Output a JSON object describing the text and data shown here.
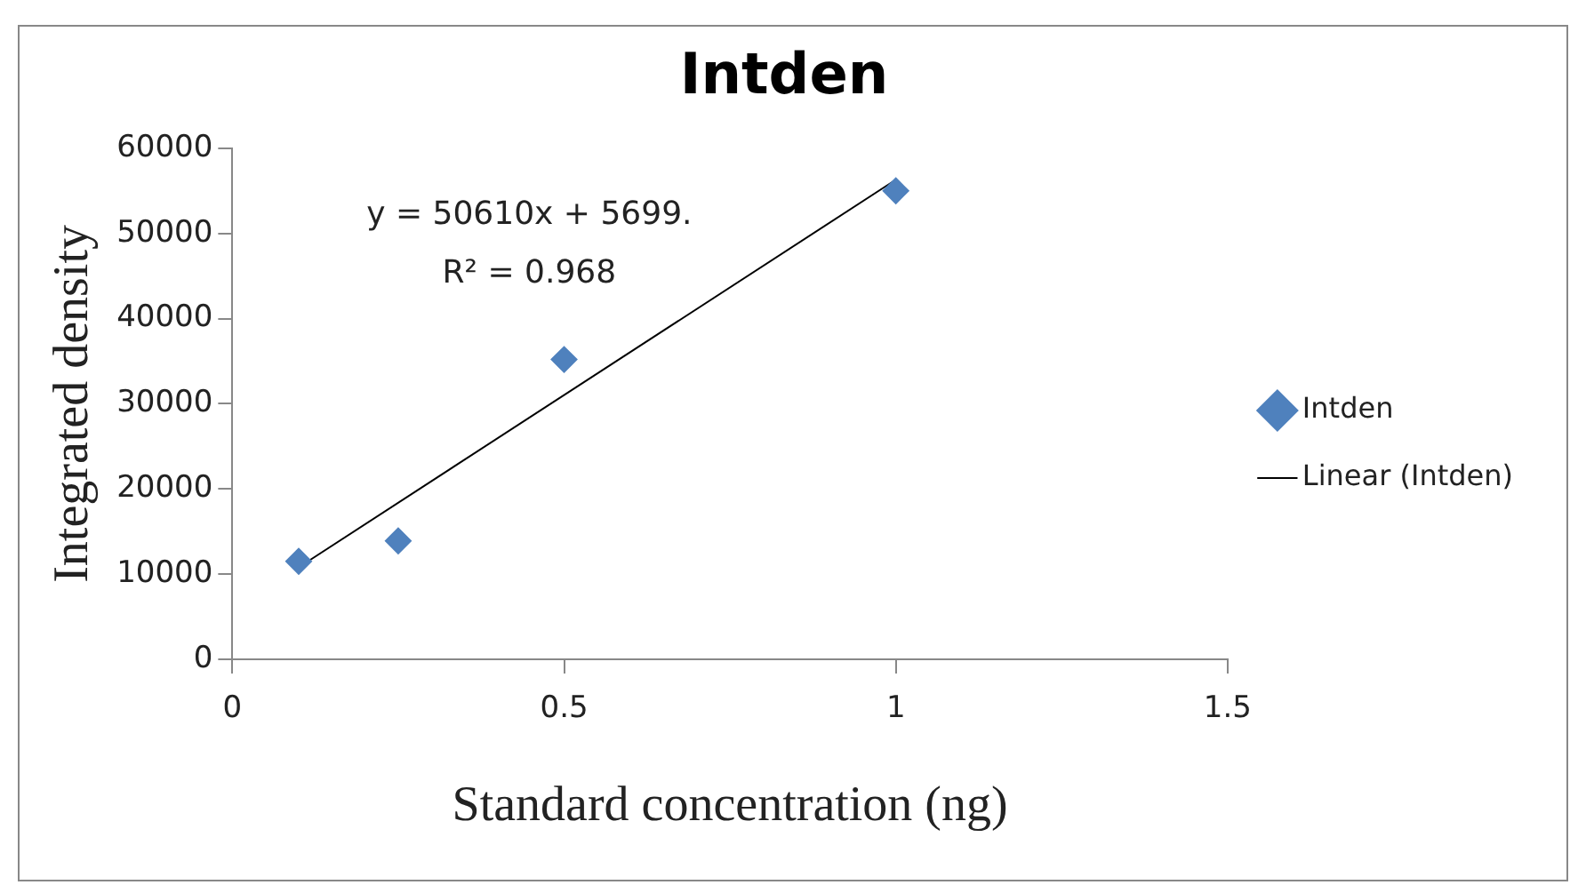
{
  "chart_data": {
    "type": "scatter",
    "title": "Intden",
    "xlabel": "Standard concentration (ng)",
    "ylabel": "Integrated density",
    "series": [
      {
        "name": "Intden",
        "color": "#4f81bd",
        "x": [
          0.1,
          0.25,
          0.5,
          1
        ],
        "values": [
          11500,
          13900,
          35200,
          55000
        ],
        "marker": "diamond"
      },
      {
        "name": "Linear (Intden)",
        "type": "line",
        "color": "#000000",
        "x": [
          0.1,
          1
        ],
        "values": [
          10800,
          56300
        ],
        "marker": "none",
        "line_style": "solid"
      }
    ],
    "xlim": [
      0,
      1.5
    ],
    "xticks": [
      0,
      0.5,
      1,
      1.5
    ],
    "ylim": [
      0,
      60000
    ],
    "yticks": [
      0,
      10000,
      20000,
      30000,
      40000,
      50000,
      60000
    ],
    "grid": false,
    "legend": "right",
    "annotations": [
      "y = 50610x + 5699.",
      "R² = 0.968"
    ]
  }
}
